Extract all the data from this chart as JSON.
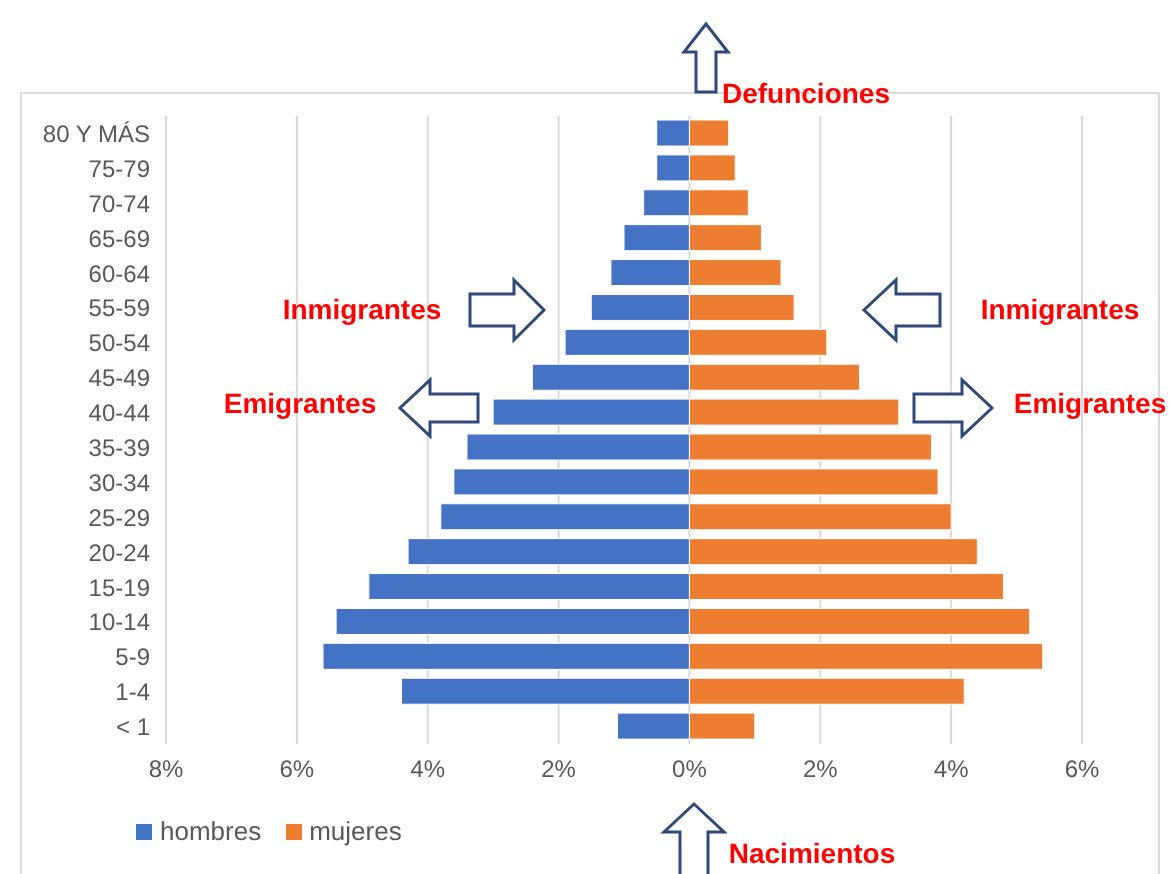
{
  "chart_data": {
    "type": "bar",
    "orientation": "horizontal",
    "stacked": true,
    "categories": [
      "80 Y MÁS",
      "75-79",
      "70-74",
      "65-69",
      "60-64",
      "55-59",
      "50-54",
      "45-49",
      "40-44",
      "35-39",
      "30-34",
      "25-29",
      "20-24",
      "15-19",
      "10-14",
      "5-9",
      "1-4",
      "< 1"
    ],
    "series": [
      {
        "name": "hombres",
        "color": "#4472c4",
        "values": [
          -0.5,
          -0.5,
          -0.7,
          -1.0,
          -1.2,
          -1.5,
          -1.9,
          -2.4,
          -3.0,
          -3.4,
          -3.6,
          -3.8,
          -4.3,
          -4.9,
          -5.4,
          -5.6,
          -4.4,
          -1.1
        ]
      },
      {
        "name": "mujeres",
        "color": "#ed7d31",
        "values": [
          0.6,
          0.7,
          0.9,
          1.1,
          1.4,
          1.6,
          2.1,
          2.6,
          3.2,
          3.7,
          3.8,
          4.0,
          4.4,
          4.8,
          5.2,
          5.4,
          4.2,
          1.0
        ]
      }
    ],
    "xlim": [
      -8,
      6
    ],
    "xticks": [
      {
        "value": -8,
        "label": "8%"
      },
      {
        "value": -6,
        "label": "6%"
      },
      {
        "value": -4,
        "label": "4%"
      },
      {
        "value": -2,
        "label": "2%"
      },
      {
        "value": 0,
        "label": "0%"
      },
      {
        "value": 2,
        "label": "2%"
      },
      {
        "value": 4,
        "label": "4%"
      },
      {
        "value": 6,
        "label": "6%"
      }
    ],
    "grid": "x",
    "legend": "bottom left",
    "annotations": [
      "Defunciones",
      "Inmigrantes",
      "Inmigrantes",
      "Emigrantes",
      "Emigrantes",
      "Nacimientos"
    ]
  }
}
